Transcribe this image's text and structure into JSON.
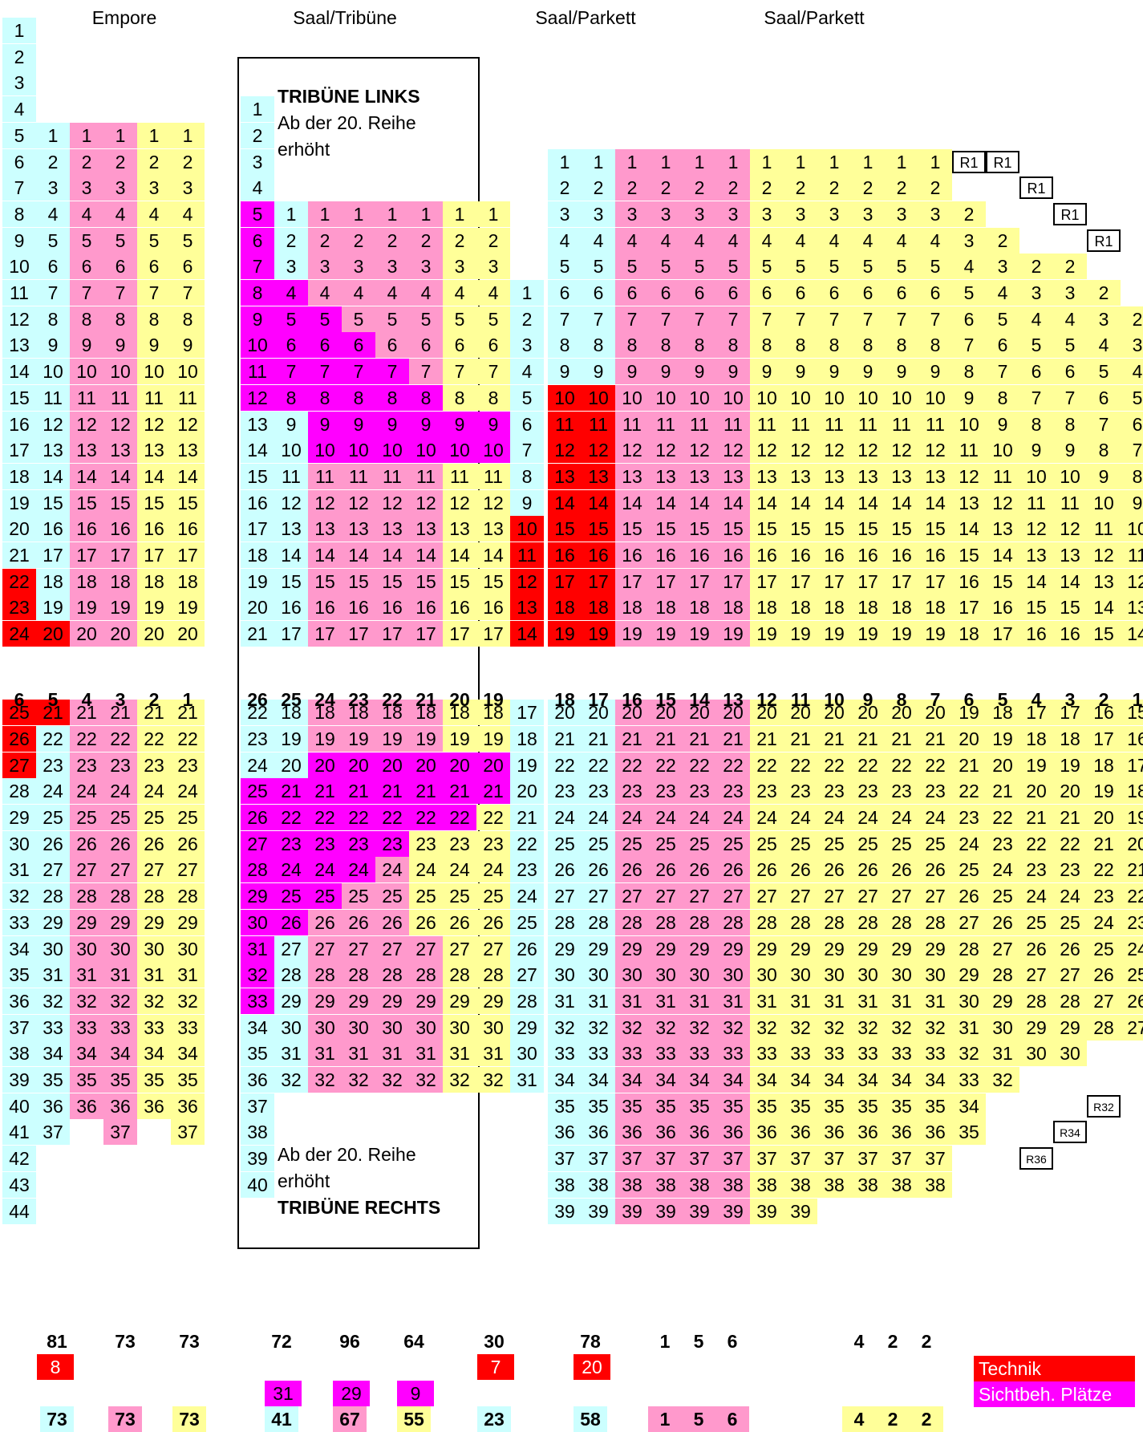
{
  "colors": {
    "cyan": "#ccffff",
    "pink": "#ff99cc",
    "yellow": "#ffff99",
    "red": "#ff0000",
    "magenta": "#ff00ff",
    "circle": "#4f81bd"
  },
  "headers": {
    "empore": "Empore",
    "tribune": "Saal/Tribüne",
    "parkett1": "Saal/Parkett",
    "parkett2": "Saal/Parkett"
  },
  "tribune_notes": {
    "links_title": "TRIBÜNE LINKS",
    "top_note_1": "Ab der 20. Reihe",
    "top_note_2": "erhöht",
    "bottom_note_1": "Ab der 20. Reihe",
    "bottom_note_2": "erhöht",
    "rechts_title": "TRIBÜNE RECHTS"
  },
  "empore_rows": {
    "numbers": [
      "1",
      "2",
      "3",
      "4",
      "5",
      "6",
      "7",
      "8",
      "9",
      "10",
      "11",
      "12",
      "13",
      "14",
      "15",
      "16",
      "17",
      "18",
      "19",
      "20",
      "21",
      "22",
      "23",
      "24",
      "25",
      "26",
      "27",
      "28",
      "29",
      "30",
      "31",
      "32",
      "33",
      "34",
      "35",
      "36",
      "37",
      "38",
      "39",
      "40",
      "41",
      "42",
      "43",
      "44"
    ],
    "highlighted": [
      "22",
      "23",
      "24",
      "25",
      "26",
      "27"
    ]
  },
  "block_headers": {
    "empore": [
      "6",
      "5",
      "4",
      "3",
      "2",
      "1"
    ],
    "tribune": [
      "26",
      "25",
      "24",
      "23",
      "22",
      "21",
      "20",
      "19"
    ],
    "parkett": [
      "18",
      "17",
      "16",
      "15",
      "14",
      "13",
      "12",
      "11",
      "10",
      "9",
      "8",
      "7",
      "6",
      "5",
      "4",
      "3",
      "2",
      "1"
    ]
  },
  "reserved_seats": {
    "r1": "R1",
    "r32": "R32",
    "r34": "R34",
    "r36": "R36"
  },
  "totals": {
    "capacity": [
      "81",
      "73",
      "73",
      "72",
      "96",
      "64",
      "30",
      "78",
      "1",
      "5",
      "6",
      "4",
      "2",
      "2"
    ],
    "technik": [
      "8",
      "7",
      "20"
    ],
    "sichtbehindert": [
      "31",
      "29",
      "9"
    ],
    "available": [
      "73",
      "73",
      "73",
      "41",
      "67",
      "55",
      "23",
      "58",
      "1",
      "5",
      "6",
      "4",
      "2",
      "2"
    ]
  },
  "legend": {
    "technik": "Technik",
    "sichtbeh": "Sichtbeh. Plätze"
  }
}
